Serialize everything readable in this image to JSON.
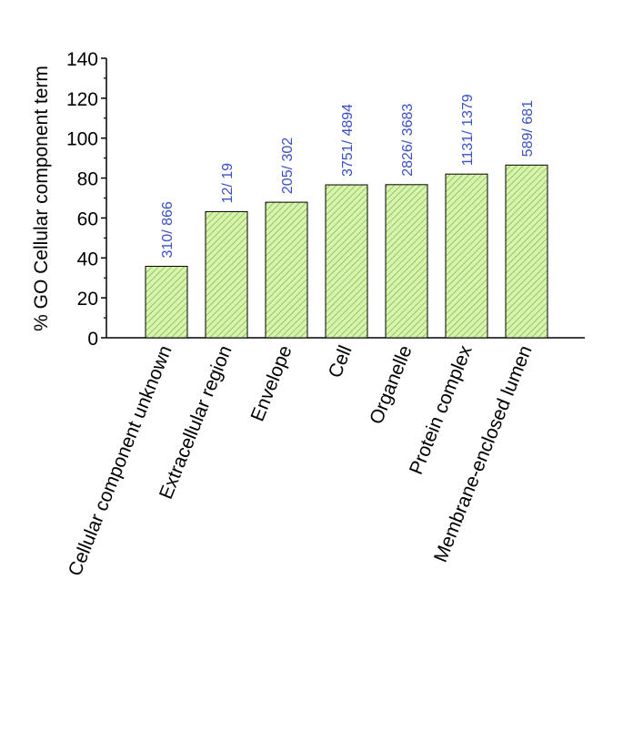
{
  "chart_data": {
    "type": "bar",
    "title": "",
    "xlabel": "",
    "ylabel": "% GO Cellular component term",
    "ylim": [
      0,
      140
    ],
    "yticks": [
      0,
      20,
      40,
      60,
      80,
      100,
      120,
      140
    ],
    "categories": [
      "Cellular component unknown",
      "Extracellular region",
      "Envelope",
      "Cell",
      "Organelle",
      "Protein complex",
      "Membrane-enclosed lumen"
    ],
    "values": [
      35.8,
      63.2,
      67.9,
      76.6,
      76.7,
      82.0,
      86.5
    ],
    "bar_labels": [
      "310/ 866",
      "12/ 19",
      "205/ 302",
      "3751/ 4894",
      "2826/ 3683",
      "1131/ 1379",
      "589/ 681"
    ],
    "grid": false,
    "colors": {
      "bar_fill": "#d9f2b0",
      "bar_hatch": "#7cc440",
      "bar_stroke": "#000000",
      "label": "#3a4fc8"
    }
  }
}
